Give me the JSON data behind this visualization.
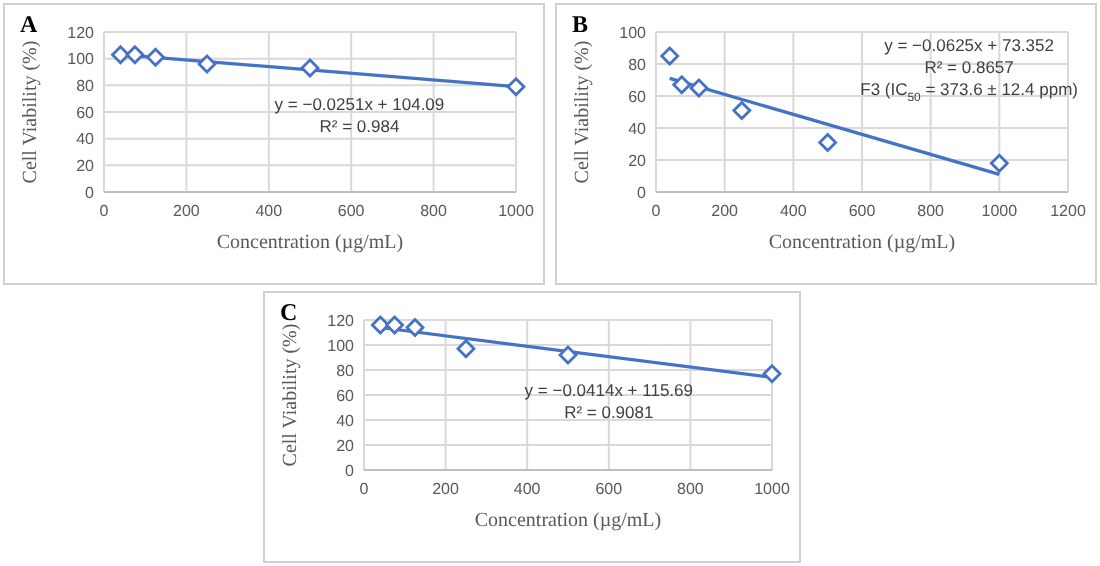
{
  "chart_data": [
    {
      "type": "scatter",
      "title": "A",
      "xlabel": "Concentration (µg/mL)",
      "ylabel": "Cell Viability (%)",
      "xlim": [
        0,
        1000
      ],
      "xticks": [
        0,
        200,
        400,
        600,
        800,
        1000
      ],
      "ylim": [
        0,
        120
      ],
      "yticks": [
        0,
        20,
        40,
        60,
        80,
        100,
        120
      ],
      "grid": true,
      "series": [
        {
          "marker": "diamond",
          "color": "#4472c4",
          "x": [
            40,
            75,
            125,
            250,
            500,
            1000
          ],
          "values": [
            103,
            103,
            101,
            96,
            93,
            79
          ]
        },
        {
          "type": "line",
          "marker": "none",
          "color": "#4472c4",
          "x": [
            40,
            1000
          ],
          "values": [
            103,
            79
          ]
        }
      ],
      "annotations": [
        "y = −0.0251x + 104.09",
        "R² = 0.984"
      ]
    },
    {
      "type": "scatter",
      "title": "B",
      "xlabel": "Concentration (µg/mL)",
      "ylabel": "Cell Viability (%)",
      "xlim": [
        0,
        1200
      ],
      "xticks": [
        0,
        200,
        400,
        600,
        800,
        1000,
        1200
      ],
      "ylim": [
        0,
        100
      ],
      "yticks": [
        0,
        20,
        40,
        60,
        80,
        100
      ],
      "grid": true,
      "series": [
        {
          "marker": "diamond",
          "color": "#4472c4",
          "x": [
            40,
            75,
            125,
            250,
            500,
            1000
          ],
          "values": [
            85,
            67,
            65,
            51,
            31,
            18
          ]
        },
        {
          "type": "line",
          "marker": "none",
          "color": "#4472c4",
          "x": [
            40,
            1000
          ],
          "values": [
            71,
            11
          ]
        }
      ],
      "annotations": [
        "y = −0.0625x + 73.352",
        "R² = 0.8657",
        "F3 (IC$_{50}$ = 373.6 ± 12.4 ppm)"
      ]
    },
    {
      "type": "scatter",
      "title": "C",
      "xlabel": "Concentration (µg/mL)",
      "ylabel": "Cell Viability (%)",
      "xlim": [
        0,
        1000
      ],
      "xticks": [
        0,
        200,
        400,
        600,
        800,
        1000
      ],
      "ylim": [
        0,
        120
      ],
      "yticks": [
        0,
        20,
        40,
        60,
        80,
        100,
        120
      ],
      "grid": true,
      "series": [
        {
          "marker": "diamond",
          "color": "#4472c4",
          "x": [
            40,
            75,
            125,
            250,
            500,
            1000
          ],
          "values": [
            116,
            116,
            114,
            97,
            92,
            77
          ]
        },
        {
          "type": "line",
          "marker": "none",
          "color": "#4472c4",
          "x": [
            40,
            1000
          ],
          "values": [
            114,
            74
          ]
        }
      ],
      "annotations": [
        "y = −0.0414x + 115.69",
        "R² = 0.9081"
      ]
    }
  ]
}
